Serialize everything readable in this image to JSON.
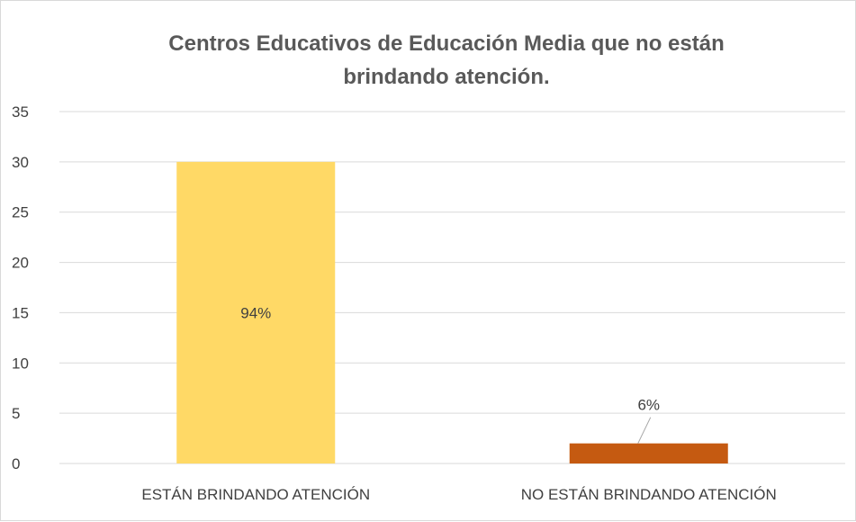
{
  "chart_data": {
    "type": "bar",
    "title_lines": [
      "Centros Educativos de Educación Media que no están",
      "brindando atención."
    ],
    "xlabel": "",
    "ylabel": "",
    "categories": [
      "ESTÁN BRINDANDO ATENCIÓN",
      "NO ESTÁN BRINDANDO ATENCIÓN"
    ],
    "values": [
      30,
      2
    ],
    "data_labels": [
      "94%",
      "6%"
    ],
    "bar_colors": [
      "#FFD966",
      "#C55A11"
    ],
    "ylim": [
      0,
      35
    ],
    "yticks": [
      0,
      5,
      10,
      15,
      20,
      25,
      30,
      35
    ],
    "grid": true,
    "legend": "none"
  }
}
